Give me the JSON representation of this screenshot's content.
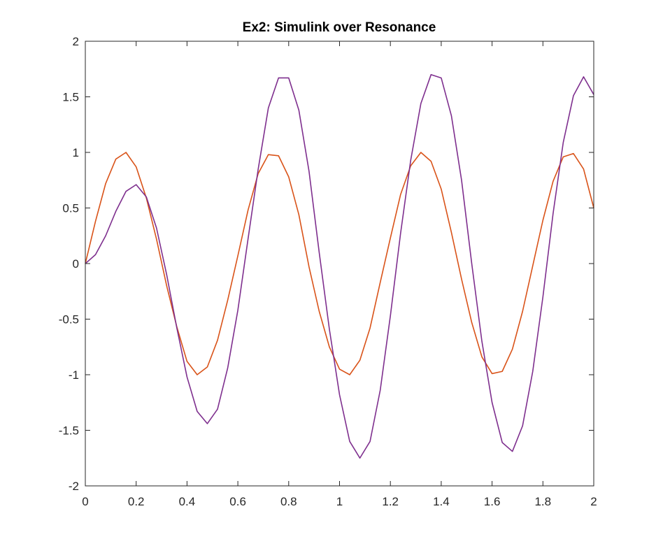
{
  "chart_data": {
    "type": "line",
    "title": "Ex2: Simulink over Resonance",
    "xlabel": "",
    "ylabel": "",
    "xlim": [
      0,
      2
    ],
    "ylim": [
      -2,
      2
    ],
    "x_ticks": [
      0,
      0.2,
      0.4,
      0.6,
      0.8,
      1,
      1.2,
      1.4,
      1.6,
      1.8,
      2
    ],
    "x_tick_labels": [
      "0",
      "0.2",
      "0.4",
      "0.6",
      "0.8",
      "1",
      "1.2",
      "1.4",
      "1.6",
      "1.8",
      "2"
    ],
    "y_ticks": [
      2,
      1.5,
      1,
      0.5,
      0,
      -0.5,
      -1,
      -1.5,
      -2
    ],
    "y_tick_labels": [
      "2",
      "1.5",
      "1",
      "0.5",
      "0",
      "-0.5",
      "-1",
      "-1.5",
      "-2"
    ],
    "grid": false,
    "box": true,
    "series": [
      {
        "color": "#D95319",
        "x": [
          0,
          0.04,
          0.08,
          0.12,
          0.16,
          0.2,
          0.24,
          0.28,
          0.32,
          0.36,
          0.4,
          0.44,
          0.48,
          0.52,
          0.56,
          0.6,
          0.64,
          0.68,
          0.72,
          0.76,
          0.8,
          0.84,
          0.88,
          0.92,
          0.96,
          1.0,
          1.04,
          1.08,
          1.12,
          1.16,
          1.2,
          1.24,
          1.28,
          1.32,
          1.36,
          1.4,
          1.44,
          1.48,
          1.52,
          1.56,
          1.6,
          1.64,
          1.68,
          1.72,
          1.76,
          1.8,
          1.84,
          1.88,
          1.92,
          1.96,
          2.0
        ],
        "y": [
          0,
          0.38,
          0.72,
          0.94,
          1.0,
          0.87,
          0.59,
          0.22,
          -0.2,
          -0.57,
          -0.88,
          -1.0,
          -0.93,
          -0.69,
          -0.33,
          0.07,
          0.48,
          0.81,
          0.98,
          0.97,
          0.78,
          0.44,
          -0.03,
          -0.43,
          -0.75,
          -0.95,
          -1.0,
          -0.87,
          -0.58,
          -0.17,
          0.23,
          0.62,
          0.88,
          1.0,
          0.92,
          0.67,
          0.28,
          -0.14,
          -0.53,
          -0.84,
          -0.99,
          -0.97,
          -0.77,
          -0.43,
          -0.02,
          0.39,
          0.74,
          0.96,
          0.99,
          0.85,
          0.5
        ]
      },
      {
        "color": "#7E2F8E",
        "x": [
          0,
          0.04,
          0.08,
          0.12,
          0.16,
          0.2,
          0.24,
          0.28,
          0.32,
          0.36,
          0.4,
          0.44,
          0.48,
          0.52,
          0.56,
          0.6,
          0.64,
          0.68,
          0.72,
          0.76,
          0.8,
          0.84,
          0.88,
          0.92,
          0.96,
          1.0,
          1.04,
          1.08,
          1.12,
          1.16,
          1.2,
          1.24,
          1.28,
          1.32,
          1.36,
          1.4,
          1.44,
          1.48,
          1.52,
          1.56,
          1.6,
          1.64,
          1.68,
          1.72,
          1.76,
          1.8,
          1.84,
          1.88,
          1.92,
          1.96,
          2.0
        ],
        "y": [
          0,
          0.08,
          0.25,
          0.47,
          0.65,
          0.71,
          0.6,
          0.32,
          -0.1,
          -0.58,
          -1.02,
          -1.33,
          -1.44,
          -1.31,
          -0.94,
          -0.42,
          0.22,
          0.85,
          1.4,
          1.67,
          1.67,
          1.38,
          0.83,
          0.1,
          -0.59,
          -1.18,
          -1.6,
          -1.75,
          -1.6,
          -1.14,
          -0.47,
          0.27,
          0.93,
          1.44,
          1.7,
          1.67,
          1.33,
          0.75,
          0.0,
          -0.7,
          -1.25,
          -1.61,
          -1.69,
          -1.46,
          -0.97,
          -0.3,
          0.45,
          1.09,
          1.51,
          1.68,
          1.52
        ]
      }
    ]
  }
}
